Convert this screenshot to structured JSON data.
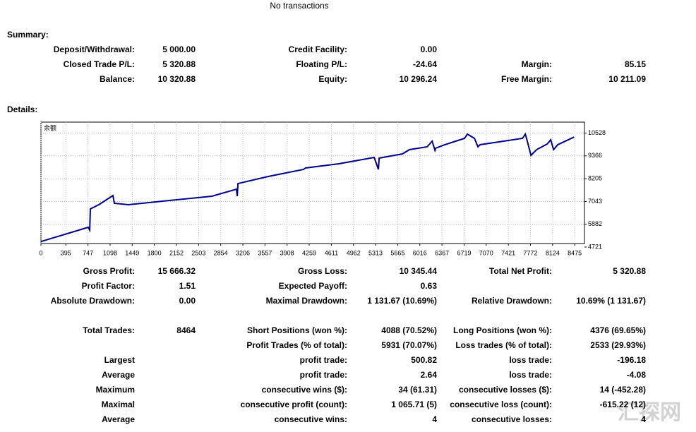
{
  "header": {
    "title": "No transactions"
  },
  "summary": {
    "title": "Summary:",
    "rows": [
      [
        "Deposit/Withdrawal:",
        "5 000.00",
        "Credit Facility:",
        "0.00",
        null,
        null
      ],
      [
        "Closed Trade P/L:",
        "5 320.88",
        "Floating P/L:",
        "-24.64",
        "Margin:",
        "85.15"
      ],
      [
        "Balance:",
        "10 320.88",
        "Equity:",
        "10 296.24",
        "Free Margin:",
        "10 211.09"
      ]
    ]
  },
  "details": {
    "title": "Details:",
    "chart": {
      "type": "line",
      "label": "余额",
      "color": "#00008b",
      "grid": true,
      "x": [
        0,
        751,
        774,
        785,
        919,
        1143,
        1166,
        1390,
        2040,
        2713,
        3105,
        3117,
        3128,
        3610,
        4170,
        4200,
        4731,
        5291,
        5359,
        5370,
        5740,
        5852,
        6132,
        6211,
        6256,
        6267,
        6413,
        6726,
        6771,
        6883,
        6939,
        6973,
        7646,
        7691,
        7713,
        7780,
        7870,
        8038,
        8094,
        8139,
        8206,
        8464
      ],
      "values": [
        5000,
        5728,
        5584,
        6663,
        6879,
        7346,
        6950,
        6879,
        7094,
        7310,
        7670,
        7310,
        7957,
        8317,
        8677,
        8749,
        8964,
        9288,
        8677,
        9252,
        9468,
        9684,
        9828,
        10115,
        9648,
        9756,
        9935,
        10259,
        10475,
        10259,
        9828,
        9935,
        10259,
        10475,
        10223,
        9396,
        9684,
        9971,
        10187,
        9684,
        9935,
        10321
      ],
      "xlim": [
        0,
        8630
      ],
      "ylim": [
        4900,
        11085
      ],
      "xticks": [
        0,
        395,
        747,
        1098,
        1449,
        1800,
        2152,
        2503,
        2854,
        3206,
        3557,
        3908,
        4259,
        4611,
        4962,
        5313,
        5665,
        6016,
        6367,
        6719,
        7070,
        7421,
        7772,
        8124,
        8475
      ],
      "yticks": [
        4721,
        5882,
        7043,
        8205,
        9366,
        10528
      ]
    }
  },
  "stats": {
    "groups": [
      [
        [
          "Gross Profit:",
          "15 666.32",
          "Gross Loss:",
          "10 345.44",
          "Total Net Profit:",
          "5 320.88"
        ],
        [
          "Profit Factor:",
          "1.51",
          "Expected Payoff:",
          "0.63",
          null,
          null
        ],
        [
          "Absolute Drawdown:",
          "0.00",
          "Maximal Drawdown:",
          "1 131.67 (10.69%)",
          "Relative Drawdown:",
          "10.69% (1 131.67)"
        ]
      ],
      [
        [
          "Total Trades:",
          "8464",
          "Short Positions (won %):",
          "4088 (70.52%)",
          "Long Positions (won %):",
          "4376 (69.65%)"
        ],
        [
          null,
          null,
          "Profit Trades (% of total):",
          "5931 (70.07%)",
          "Loss trades (% of total):",
          "2533 (29.93%)"
        ],
        [
          "Largest",
          null,
          "profit trade:",
          "500.82",
          "loss trade:",
          "-196.18"
        ],
        [
          "Average",
          null,
          "profit trade:",
          "2.64",
          "loss trade:",
          "-4.08"
        ],
        [
          "Maximum",
          null,
          "consecutive wins ($):",
          "34 (61.31)",
          "consecutive losses ($):",
          "14 (-452.28)"
        ],
        [
          "Maximal",
          null,
          "consecutive profit (count):",
          "1 065.71 (5)",
          "consecutive loss (count):",
          "-615.22 (12)"
        ],
        [
          "Average",
          null,
          "consecutive wins:",
          "4",
          "consecutive losses:",
          "4"
        ]
      ]
    ]
  },
  "watermark": "汇探网"
}
